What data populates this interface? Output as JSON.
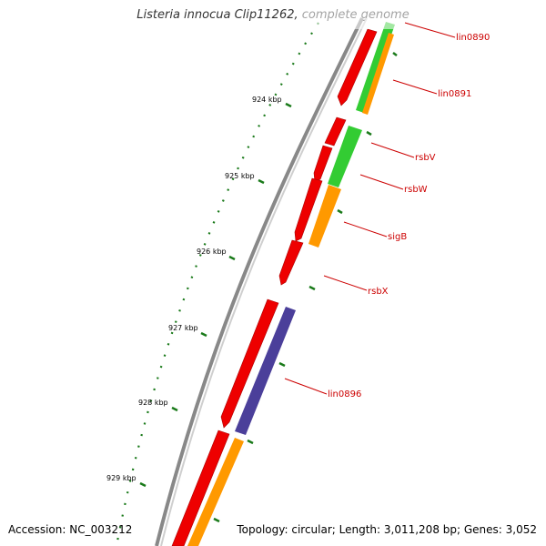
{
  "header": {
    "title": "Listeria innocua Clip11262, complete genome"
  },
  "footer": {
    "accession": "Accession: NC_003212",
    "summary": "Topology: circular; Length: 3,011,208 bp; Genes: 3,052"
  },
  "ticks": [
    {
      "label": "924 kbp"
    },
    {
      "label": "925 kbp"
    },
    {
      "label": "926 kbp"
    },
    {
      "label": "927 kbp"
    },
    {
      "label": "928 kbp"
    },
    {
      "label": "929 kbp"
    }
  ],
  "genes": [
    {
      "label": "lin0890"
    },
    {
      "label": "lin0891"
    },
    {
      "label": "rsbV"
    },
    {
      "label": "rsbW"
    },
    {
      "label": "sigB"
    },
    {
      "label": "rsbX"
    },
    {
      "label": "lin0896"
    }
  ],
  "colors": {
    "cds": "#ee0000",
    "green": "#33cc33",
    "orange": "#ff9900",
    "purple": "#4b3f9a",
    "backbone": "#888888",
    "tick": "#1a7a1a",
    "label": "#cc0000"
  }
}
